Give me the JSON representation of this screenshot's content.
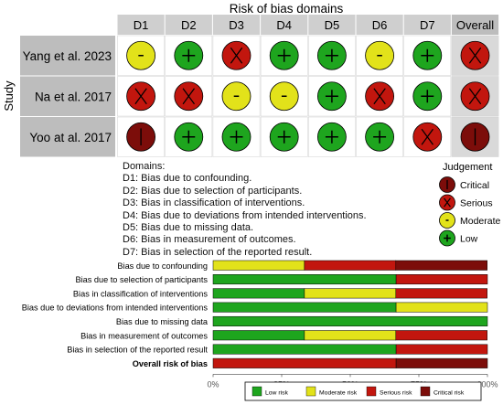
{
  "traffic_light": {
    "title": "Risk of bias domains",
    "y_axis_label": "Study",
    "columns": [
      "D1",
      "D2",
      "D3",
      "D4",
      "D5",
      "D6",
      "D7",
      "Overall"
    ],
    "studies": [
      {
        "name": "Yang et al. 2023",
        "judgements": [
          "moderate",
          "low",
          "serious",
          "low",
          "low",
          "moderate",
          "low",
          "serious"
        ]
      },
      {
        "name": "Na et al. 2017",
        "judgements": [
          "serious",
          "serious",
          "moderate",
          "moderate",
          "low",
          "serious",
          "low",
          "serious"
        ]
      },
      {
        "name": "Yoo at al. 2017",
        "judgements": [
          "critical",
          "low",
          "low",
          "low",
          "low",
          "low",
          "serious",
          "critical"
        ]
      }
    ]
  },
  "symbols": {
    "low": {
      "glyph": "+",
      "color": "#1ea51e"
    },
    "moderate": {
      "glyph": "-",
      "color": "#e2e21a"
    },
    "serious": {
      "glyph": "X",
      "color": "#c2160e"
    },
    "critical": {
      "glyph": "!",
      "color": "#7c0d0a"
    }
  },
  "domains_legend": {
    "heading": "Domains:",
    "lines": [
      "D1: Bias due to confounding.",
      "D2: Bias due to selection of participants.",
      "D3: Bias in classification of interventions.",
      "D4: Bias due to deviations from intended interventions.",
      "D5: Bias due to missing data.",
      "D6: Bias in measurement of outcomes.",
      "D7: Bias in selection of the reported result."
    ]
  },
  "judgement_legend": {
    "title": "Judgement",
    "items": [
      {
        "key": "critical",
        "label": "Critical"
      },
      {
        "key": "serious",
        "label": "Serious"
      },
      {
        "key": "moderate",
        "label": "Moderate"
      },
      {
        "key": "low",
        "label": "Low"
      }
    ]
  },
  "chart_data": {
    "type": "bar",
    "orientation": "horizontal",
    "stacked": true,
    "xlim": [
      0,
      100
    ],
    "x_ticks": [
      "0%",
      "25%",
      "50%",
      "75%",
      "100%"
    ],
    "categories": [
      "Bias due to confounding",
      "Bias due to selection of participants",
      "Bias in classification of interventions",
      "Bias due to deviations from intended interventions",
      "Bias due to missing data",
      "Bias in measurement of outcomes",
      "Bias in selection of the reported result",
      "Overall risk of bias"
    ],
    "bold_categories": [
      "Overall risk of bias"
    ],
    "series": [
      {
        "name": "Low risk",
        "color": "#1ea51e",
        "values": [
          0,
          66.7,
          33.3,
          66.7,
          100,
          33.3,
          66.7,
          0
        ]
      },
      {
        "name": "Moderate risk",
        "color": "#e2e21a",
        "values": [
          33.3,
          0,
          33.3,
          33.3,
          0,
          33.3,
          0,
          0
        ]
      },
      {
        "name": "Serious risk",
        "color": "#c2160e",
        "values": [
          33.3,
          33.3,
          33.3,
          0,
          0,
          33.3,
          33.3,
          66.7
        ]
      },
      {
        "name": "Critical risk",
        "color": "#7c0d0a",
        "values": [
          33.3,
          0,
          0,
          0,
          0,
          0,
          0,
          33.3
        ]
      }
    ],
    "legend_position": "bottom"
  }
}
